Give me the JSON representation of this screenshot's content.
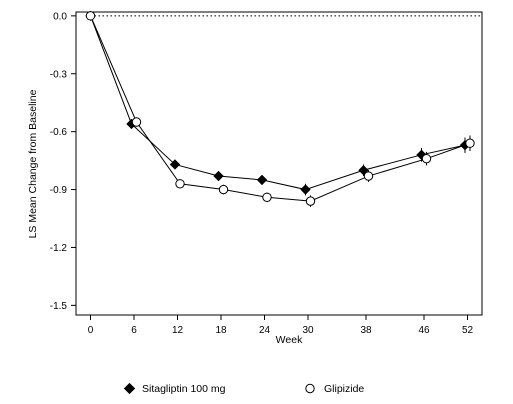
{
  "chart_data": {
    "type": "line",
    "title": "",
    "xlabel": "Week",
    "ylabel": "LS Mean Change from Baseline",
    "x_ticks": [
      0,
      6,
      12,
      18,
      24,
      30,
      38,
      46,
      52
    ],
    "y_ticks": [
      0.0,
      -0.3,
      -0.6,
      -0.9,
      -1.2,
      -1.5
    ],
    "y_tick_labels": [
      "0.0",
      "-0.3",
      "-0.6",
      "-0.9",
      "-1.2",
      "-1.5"
    ],
    "xlim": [
      -2,
      54
    ],
    "ylim": [
      -1.55,
      0.02
    ],
    "reference_line_y": 0.0,
    "grid": false,
    "legend_position": "bottom",
    "series": [
      {
        "name": "Sitagliptin 100 mg",
        "marker": "filled-diamond",
        "color": "#000000",
        "x": [
          0,
          6,
          12,
          18,
          24,
          30,
          38,
          46,
          52
        ],
        "y": [
          0.0,
          -0.56,
          -0.77,
          -0.83,
          -0.85,
          -0.9,
          -0.8,
          -0.72,
          -0.67
        ],
        "err": [
          0,
          0.02,
          0.02,
          0.025,
          0.025,
          0.03,
          0.03,
          0.035,
          0.04
        ]
      },
      {
        "name": "Glipizide",
        "marker": "open-circle",
        "color": "#000000",
        "x": [
          0,
          6,
          12,
          18,
          24,
          30,
          38,
          46,
          52
        ],
        "y": [
          0.0,
          -0.55,
          -0.87,
          -0.9,
          -0.94,
          -0.96,
          -0.83,
          -0.74,
          -0.66
        ],
        "err": [
          0,
          0.02,
          0.02,
          0.025,
          0.025,
          0.03,
          0.03,
          0.035,
          0.04
        ]
      }
    ]
  }
}
